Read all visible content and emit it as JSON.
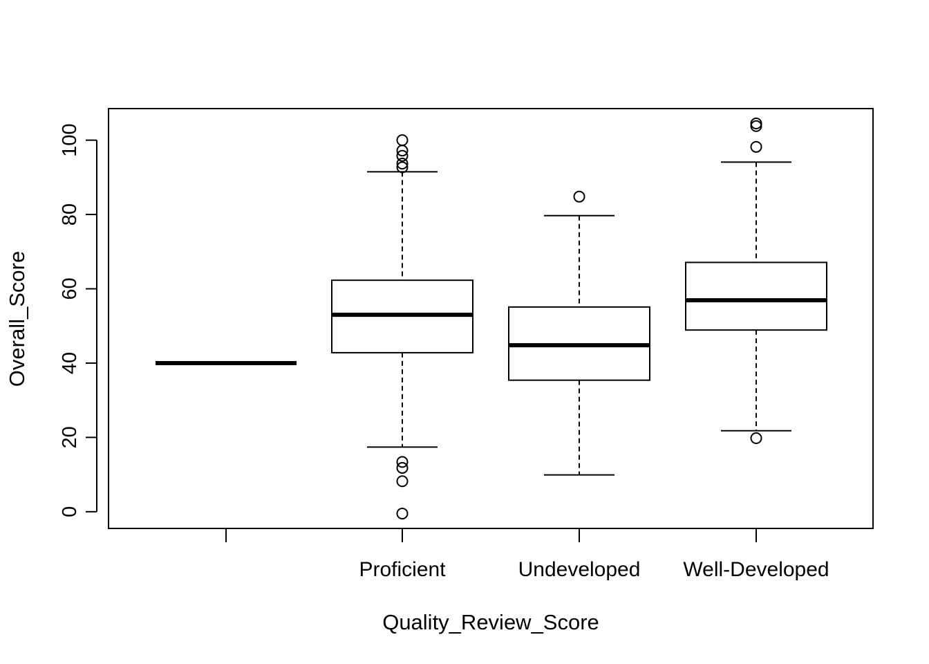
{
  "chart_data": {
    "type": "box",
    "title": "",
    "xlabel": "Quality_Review_Score",
    "ylabel": "Overall_Score",
    "ylim": [
      -4.5,
      108.5
    ],
    "y_ticks": [
      0,
      20,
      40,
      60,
      80,
      100
    ],
    "y_tick_labels": [
      "0",
      "20",
      "40",
      "60",
      "80",
      "100"
    ],
    "categories": [
      "",
      "Proficient",
      "Undeveloped",
      "Well-Developed"
    ],
    "boxes": [
      {
        "category": "",
        "whisker_low": 40,
        "q1": 40,
        "median": 40,
        "q3": 40,
        "whisker_high": 40,
        "outliers": []
      },
      {
        "category": "Proficient",
        "whisker_low": 17.4,
        "q1": 42.8,
        "median": 53.0,
        "q3": 62.3,
        "whisker_high": 91.5,
        "outliers": [
          100,
          97.2,
          95.8,
          93.7,
          92.7,
          13.4,
          11.8,
          8.2,
          -0.5
        ]
      },
      {
        "category": "Undeveloped",
        "whisker_low": 9.9,
        "q1": 35.4,
        "median": 44.8,
        "q3": 55.1,
        "whisker_high": 79.7,
        "outliers": [
          84.8
        ]
      },
      {
        "category": "Well-Developed",
        "whisker_low": 21.8,
        "q1": 48.9,
        "median": 56.9,
        "q3": 67.1,
        "whisker_high": 94.1,
        "outliers": [
          104.5,
          103.8,
          98.2,
          19.8
        ]
      }
    ],
    "grid": false,
    "legend": "none"
  }
}
